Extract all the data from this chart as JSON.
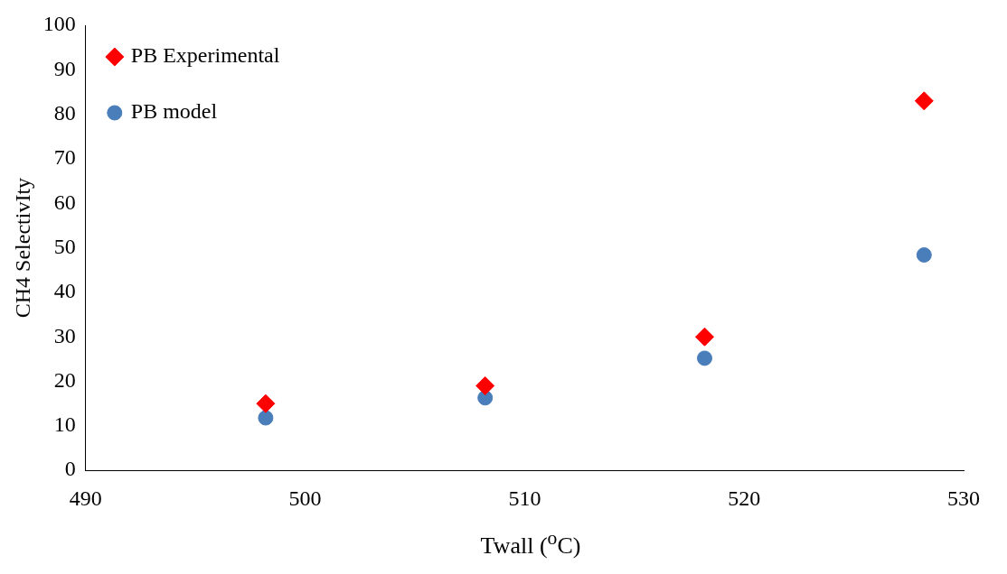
{
  "chart_data": {
    "type": "scatter",
    "xlabel": "Twall ($^{o}$C)",
    "ylabel": "CH4 SelectivIty",
    "x": [
      498.2,
      508.2,
      518.2,
      528.2
    ],
    "series": [
      {
        "name": "PB Experimental",
        "color": "#ff0000",
        "marker": "diamond",
        "values": [
          15,
          19,
          30,
          83
        ]
      },
      {
        "name": "PB model",
        "color": "#4a7ebb",
        "marker": "circle",
        "values": [
          11.8,
          16.3,
          25.2,
          48.4
        ]
      }
    ],
    "xlim": [
      490,
      530
    ],
    "xticks": [
      490,
      500,
      510,
      520,
      530
    ],
    "ylim": [
      0,
      100
    ],
    "yticks": [
      0,
      10,
      20,
      30,
      40,
      50,
      60,
      70,
      80,
      90,
      100
    ],
    "grid": false,
    "legend": "top left"
  }
}
